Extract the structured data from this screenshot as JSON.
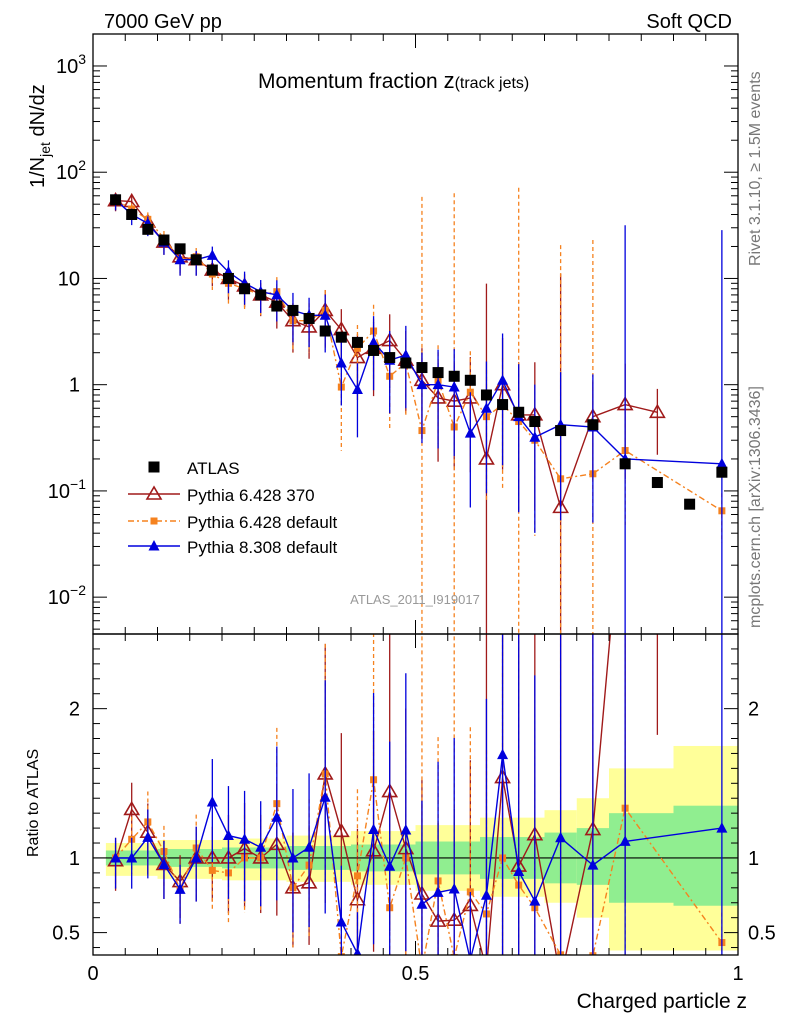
{
  "header": {
    "left": "7000 GeV pp",
    "right": "Soft QCD"
  },
  "side_labels": {
    "rivet": "Rivet 3.1.10, ≥ 1.5M events",
    "mcplots": "mcplots.cern.ch [arXiv:1306.3436]"
  },
  "chart_data": {
    "type": "scatter",
    "title_main": "Momentum fraction ",
    "title_z": "z",
    "title_sub": "(track jets)",
    "watermark": "ATLAS_2011_I919017",
    "ylabel_main": "1/N",
    "ylabel_sub": "jet",
    "ylabel_tail": " dN/dz",
    "xlabel": "Charged particle z",
    "ratio_ylabel": "Ratio to ATLAS",
    "xlim": [
      0,
      1
    ],
    "ylim_log": [
      0.0045,
      2000
    ],
    "ratio_ylim": [
      0.35,
      2.5
    ],
    "x_ticks": [
      {
        "v": 0,
        "label": "0"
      },
      {
        "v": 0.5,
        "label": "0.5"
      },
      {
        "v": 1,
        "label": "1"
      }
    ],
    "y_ticks": [
      {
        "v": 1000,
        "base": "10",
        "exp": "3"
      },
      {
        "v": 100,
        "base": "10",
        "exp": "2"
      },
      {
        "v": 10,
        "base": "10",
        "exp": ""
      },
      {
        "v": 1,
        "base": "1",
        "exp": ""
      },
      {
        "v": 0.1,
        "base": "10",
        "exp": "−1"
      },
      {
        "v": 0.01,
        "base": "10",
        "exp": "−2"
      }
    ],
    "ratio_ticks": [
      {
        "v": 2,
        "label": "2"
      },
      {
        "v": 1,
        "label": "1"
      },
      {
        "v": 0.5,
        "label": "0.5"
      }
    ],
    "legend": [
      {
        "key": "atlas",
        "label": "ATLAS"
      },
      {
        "key": "p6_370",
        "label": "Pythia 6.428 370"
      },
      {
        "key": "p6_def",
        "label": "Pythia 6.428 default"
      },
      {
        "key": "p8_def",
        "label": "Pythia 8.308 default"
      }
    ],
    "x": [
      0.035,
      0.06,
      0.085,
      0.11,
      0.135,
      0.16,
      0.185,
      0.21,
      0.235,
      0.26,
      0.285,
      0.31,
      0.335,
      0.36,
      0.385,
      0.41,
      0.435,
      0.46,
      0.485,
      0.51,
      0.535,
      0.56,
      0.585,
      0.61,
      0.635,
      0.66,
      0.685,
      0.725,
      0.775,
      0.825,
      0.875,
      0.925,
      0.975
    ],
    "series": [
      {
        "key": "atlas",
        "name": "ATLAS",
        "color": "#000000",
        "values": [
          55,
          40,
          29,
          23,
          19,
          15,
          12,
          10,
          8,
          7,
          5.5,
          5,
          4.2,
          3.2,
          2.8,
          2.5,
          2.1,
          1.8,
          1.6,
          1.45,
          1.3,
          1.2,
          1.1,
          0.8,
          0.65,
          0.55,
          0.45,
          0.37,
          0.42,
          0.18,
          0.12,
          0.075,
          0.15
        ]
      },
      {
        "key": "p6_370",
        "name": "Pythia 6.428 370",
        "color": "#a01a1a",
        "values": [
          54,
          53,
          34,
          22,
          16,
          15,
          12,
          10,
          8.5,
          7,
          6,
          4,
          3.5,
          5,
          3.3,
          1.8,
          2.2,
          2.6,
          1.7,
          1.1,
          0.75,
          0.7,
          0.75,
          0.2,
          1,
          0.52,
          0.52,
          0.07,
          0.5,
          0.65,
          0.55,
          null,
          null
        ],
        "errors": [
          0.1,
          0.1,
          0.12,
          0.12,
          0.15,
          0.15,
          0.15,
          0.2,
          0.2,
          0.2,
          0.25,
          0.3,
          0.3,
          0.35,
          0.35,
          0.4,
          0.45,
          0.45,
          0.5,
          0.55,
          0.6,
          0.65,
          0.7,
          3,
          0.8,
          0.9,
          0.9,
          4,
          0.6,
          0.7,
          0.4,
          0,
          0
        ]
      },
      {
        "key": "p6_def",
        "name": "Pythia 6.428 default",
        "color": "#f5821f",
        "values": [
          55,
          45,
          36,
          24,
          15,
          16,
          11,
          9,
          8,
          7,
          7.5,
          4,
          4,
          5,
          0.95,
          2.2,
          3.2,
          1.2,
          1.6,
          0.37,
          1.1,
          0.4,
          0.85,
          0.5,
          0.65,
          0.45,
          0.3,
          0.13,
          0.145,
          0.24,
          null,
          null,
          0.065
        ],
        "errors": [
          0.1,
          0.1,
          0.12,
          0.12,
          0.15,
          0.15,
          0.15,
          0.2,
          0.2,
          0.2,
          0.25,
          0.3,
          0.3,
          0.35,
          0.6,
          0.4,
          0.45,
          0.5,
          0.5,
          4,
          0.6,
          4,
          0.7,
          0.8,
          0.8,
          4,
          0.9,
          4,
          4,
          0.7,
          0,
          0,
          0.3
        ]
      },
      {
        "key": "p8_def",
        "name": "Pythia 8.308 default",
        "color": "#0000dd",
        "values": [
          55,
          40,
          33,
          22,
          15,
          15,
          16.5,
          11.5,
          9,
          7.5,
          7,
          5,
          4.5,
          4.5,
          1.6,
          0.9,
          2.5,
          1.7,
          1.9,
          1.0,
          1.0,
          0.95,
          0.35,
          0.6,
          1.1,
          0.5,
          0.32,
          0.42,
          0.4,
          0.2,
          null,
          null,
          0.18
        ],
        "errors": [
          0.1,
          0.1,
          0.12,
          0.12,
          0.15,
          0.15,
          0.15,
          0.2,
          0.2,
          0.2,
          0.25,
          0.3,
          0.3,
          0.35,
          0.4,
          0.45,
          0.45,
          0.5,
          0.5,
          0.55,
          0.6,
          0.65,
          0.7,
          0.8,
          0.8,
          0.9,
          0.9,
          0.9,
          0.9,
          4,
          0,
          0,
          4
        ]
      }
    ],
    "ratio_band_green": [
      {
        "x0": 0.02,
        "x1": 0.1,
        "lo": 0.95,
        "hi": 1.05
      },
      {
        "x0": 0.1,
        "x1": 0.2,
        "lo": 0.94,
        "hi": 1.06
      },
      {
        "x0": 0.2,
        "x1": 0.3,
        "lo": 0.93,
        "hi": 1.07
      },
      {
        "x0": 0.3,
        "x1": 0.4,
        "lo": 0.92,
        "hi": 1.08
      },
      {
        "x0": 0.4,
        "x1": 0.5,
        "lo": 0.91,
        "hi": 1.09
      },
      {
        "x0": 0.5,
        "x1": 0.6,
        "lo": 0.89,
        "hi": 1.11
      },
      {
        "x0": 0.6,
        "x1": 0.7,
        "lo": 0.86,
        "hi": 1.14
      },
      {
        "x0": 0.7,
        "x1": 0.75,
        "lo": 0.83,
        "hi": 1.17
      },
      {
        "x0": 0.75,
        "x1": 0.8,
        "lo": 0.82,
        "hi": 1.2
      },
      {
        "x0": 0.8,
        "x1": 0.9,
        "lo": 0.7,
        "hi": 1.3
      },
      {
        "x0": 0.9,
        "x1": 1.0,
        "lo": 0.68,
        "hi": 1.35
      }
    ],
    "ratio_band_yellow": [
      {
        "x0": 0.02,
        "x1": 0.1,
        "lo": 0.88,
        "hi": 1.1
      },
      {
        "x0": 0.1,
        "x1": 0.2,
        "lo": 0.86,
        "hi": 1.12
      },
      {
        "x0": 0.2,
        "x1": 0.3,
        "lo": 0.85,
        "hi": 1.13
      },
      {
        "x0": 0.3,
        "x1": 0.4,
        "lo": 0.84,
        "hi": 1.15
      },
      {
        "x0": 0.4,
        "x1": 0.5,
        "lo": 0.82,
        "hi": 1.18
      },
      {
        "x0": 0.5,
        "x1": 0.6,
        "lo": 0.78,
        "hi": 1.22
      },
      {
        "x0": 0.6,
        "x1": 0.7,
        "lo": 0.74,
        "hi": 1.27
      },
      {
        "x0": 0.7,
        "x1": 0.75,
        "lo": 0.7,
        "hi": 1.32
      },
      {
        "x0": 0.75,
        "x1": 0.8,
        "lo": 0.6,
        "hi": 1.4
      },
      {
        "x0": 0.8,
        "x1": 0.9,
        "lo": 0.38,
        "hi": 1.6
      },
      {
        "x0": 0.9,
        "x1": 1.0,
        "lo": 0.38,
        "hi": 1.75
      }
    ]
  }
}
